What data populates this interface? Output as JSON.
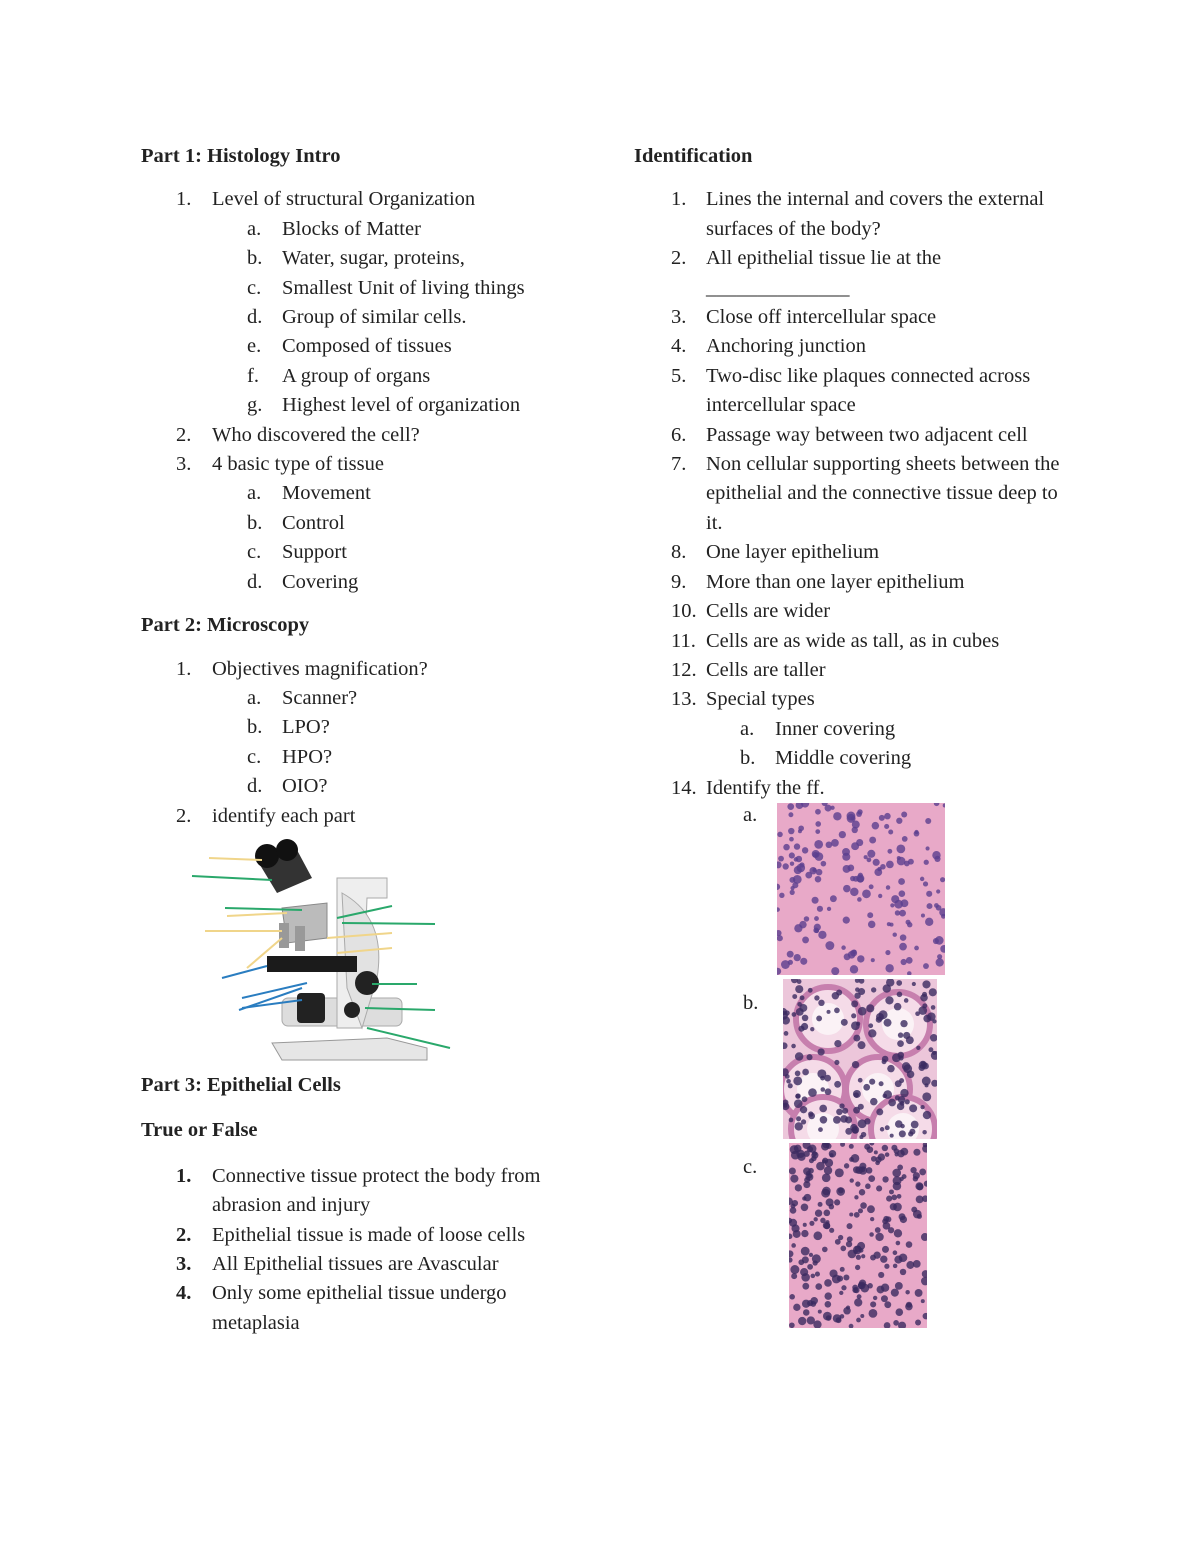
{
  "part1": {
    "title": "Part 1: Histology Intro",
    "items": [
      {
        "marker": "1.",
        "text": "Level of structural Organization",
        "sub": [
          {
            "marker": "a.",
            "text": "Blocks of Matter"
          },
          {
            "marker": "b.",
            "text": "Water, sugar, proteins,"
          },
          {
            "marker": "c.",
            "text": "Smallest Unit of living things"
          },
          {
            "marker": "d.",
            "text": "Group of similar cells."
          },
          {
            "marker": "e.",
            "text": "Composed of tissues"
          },
          {
            "marker": "f.",
            "text": "A group of organs"
          },
          {
            "marker": "g.",
            "text": "Highest level of organization"
          }
        ]
      },
      {
        "marker": "2.",
        "text": "Who discovered the cell?"
      },
      {
        "marker": "3.",
        "text": "4 basic type of tissue",
        "sub": [
          {
            "marker": "a.",
            "text": "Movement"
          },
          {
            "marker": "b.",
            "text": "Control"
          },
          {
            "marker": "c.",
            "text": "Support"
          },
          {
            "marker": "d.",
            "text": "Covering"
          }
        ]
      }
    ]
  },
  "part2": {
    "title": "Part 2: Microscopy",
    "items": [
      {
        "marker": "1.",
        "text": "Objectives magnification?",
        "sub": [
          {
            "marker": "a.",
            "text": "Scanner?"
          },
          {
            "marker": "b.",
            "text": "LPO?"
          },
          {
            "marker": "c.",
            "text": "HPO?"
          },
          {
            "marker": "d.",
            "text": "OIO?"
          }
        ]
      },
      {
        "marker": "2.",
        "text": "identify each part"
      }
    ]
  },
  "part3": {
    "title": "Part 3: Epithelial Cells",
    "subtitle": "True or False",
    "items": [
      {
        "marker": "1.",
        "text": "Connective tissue protect the body from abrasion and injury"
      },
      {
        "marker": "2.",
        "text": "Epithelial tissue is made of loose cells"
      },
      {
        "marker": "3.",
        "text": "All Epithelial tissues are Avascular"
      },
      {
        "marker": "4.",
        "text": "Only some epithelial tissue undergo metaplasia"
      }
    ]
  },
  "identification": {
    "title": "Identification",
    "items": [
      {
        "marker": "1.",
        "text": "Lines the internal and covers the external surfaces of the body?"
      },
      {
        "marker": "2.",
        "text": "All epithelial tissue lie at the",
        "blank": "______________"
      },
      {
        "marker": "3.",
        "text": "Close off intercellular space"
      },
      {
        "marker": "4.",
        "text": "Anchoring junction"
      },
      {
        "marker": "5.",
        "text": "Two-disc like plaques connected across intercellular space"
      },
      {
        "marker": "6.",
        "text": "Passage way between two adjacent cell"
      },
      {
        "marker": "7.",
        "text": "Non cellular supporting sheets between the epithelial and the connective tissue deep to it."
      },
      {
        "marker": "8.",
        "text": "One layer epithelium"
      },
      {
        "marker": "9.",
        "text": "More than one layer epithelium"
      },
      {
        "marker": "10.",
        "text": "Cells are wider"
      },
      {
        "marker": "11.",
        "text": "Cells are as wide as tall, as in cubes"
      },
      {
        "marker": "12.",
        "text": "Cells are taller"
      },
      {
        "marker": "13.",
        "text": "Special types",
        "sub": [
          {
            "marker": "a.",
            "text": "Inner covering"
          },
          {
            "marker": "b.",
            "text": "Middle covering"
          }
        ]
      },
      {
        "marker": "14.",
        "text": "Identify the ff.",
        "images": [
          {
            "marker": "a."
          },
          {
            "marker": "b."
          },
          {
            "marker": "c."
          }
        ]
      }
    ]
  }
}
